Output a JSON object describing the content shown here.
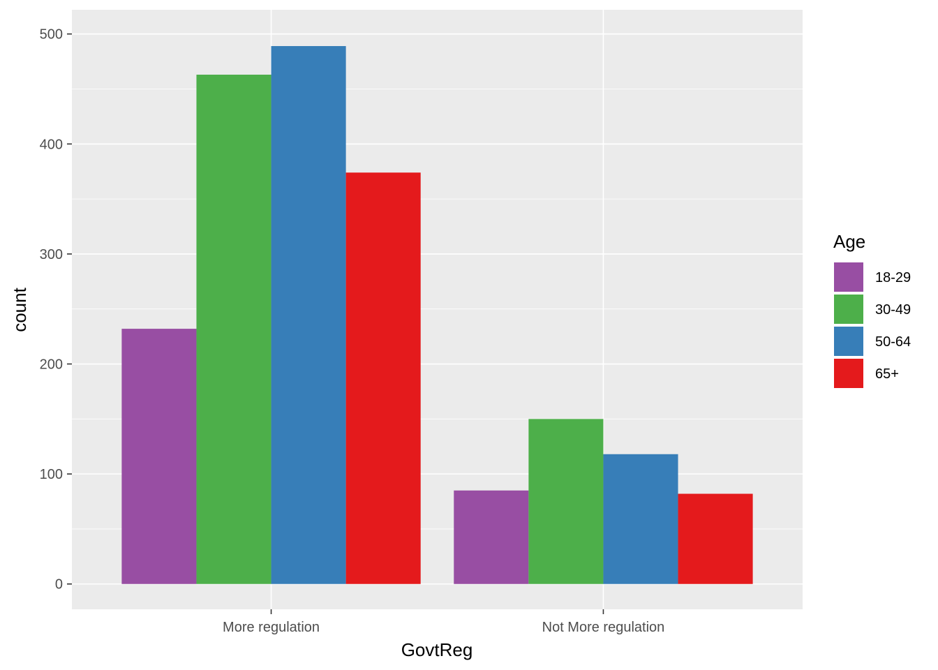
{
  "chart_data": {
    "type": "bar",
    "xlabel": "GovtReg",
    "ylabel": "count",
    "categories": [
      "More regulation",
      "Not More regulation"
    ],
    "ylim": [
      -23,
      522
    ],
    "yticks": [
      0,
      100,
      200,
      300,
      400,
      500
    ],
    "grid": true,
    "legend": {
      "title": "Age",
      "position": "right"
    },
    "series": [
      {
        "name": "18-29",
        "color": "#984EA3",
        "values": [
          232,
          85
        ]
      },
      {
        "name": "30-49",
        "color": "#4DAF4A",
        "values": [
          463,
          150
        ]
      },
      {
        "name": "50-64",
        "color": "#377EB8",
        "values": [
          489,
          118
        ]
      },
      {
        "name": "65+",
        "color": "#E41A1C",
        "values": [
          374,
          82
        ]
      }
    ]
  }
}
